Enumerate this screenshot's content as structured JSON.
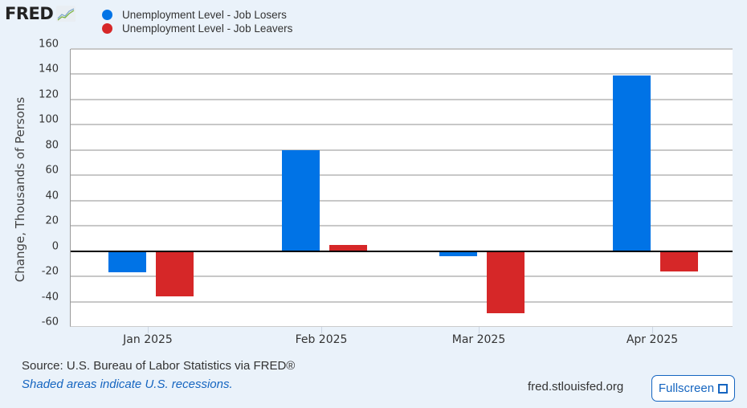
{
  "header": {
    "logo_text": "FRED",
    "logo_icon": "line-chart-icon"
  },
  "legend": [
    {
      "label": "Unemployment Level - Job Losers",
      "color": "#0073e6"
    },
    {
      "label": "Unemployment Level - Job Leavers",
      "color": "#d62728"
    }
  ],
  "axes": {
    "ylabel": "Change, Thousands of Persons",
    "yticks": [
      "160",
      "140",
      "120",
      "100",
      "80",
      "60",
      "40",
      "20",
      "0",
      "-20",
      "-40",
      "-60"
    ],
    "xticks": [
      "Jan 2025",
      "Feb 2025",
      "Mar 2025",
      "Apr 2025"
    ]
  },
  "footer": {
    "source": "Source: U.S. Bureau of Labor Statistics via FRED®",
    "recessions_note": "Shaded areas indicate U.S. recessions.",
    "site": "fred.stlouisfed.org",
    "fullscreen_label": "Fullscreen"
  },
  "chart_data": {
    "type": "bar",
    "title": "",
    "categories": [
      "Jan 2025",
      "Feb 2025",
      "Mar 2025",
      "Apr 2025"
    ],
    "series": [
      {
        "name": "Unemployment Level - Job Losers",
        "color": "#0073e6",
        "values": [
          -17,
          80,
          -4,
          139
        ]
      },
      {
        "name": "Unemployment Level - Job Leavers",
        "color": "#d62728",
        "values": [
          -36,
          5,
          -49,
          -16
        ]
      }
    ],
    "xlabel": "",
    "ylabel": "Change, Thousands of Persons",
    "ylim": [
      -60,
      160
    ],
    "yticks": [
      -60,
      -40,
      -20,
      0,
      20,
      40,
      60,
      80,
      100,
      120,
      140,
      160
    ],
    "grid": true,
    "legend_position": "top-left"
  }
}
